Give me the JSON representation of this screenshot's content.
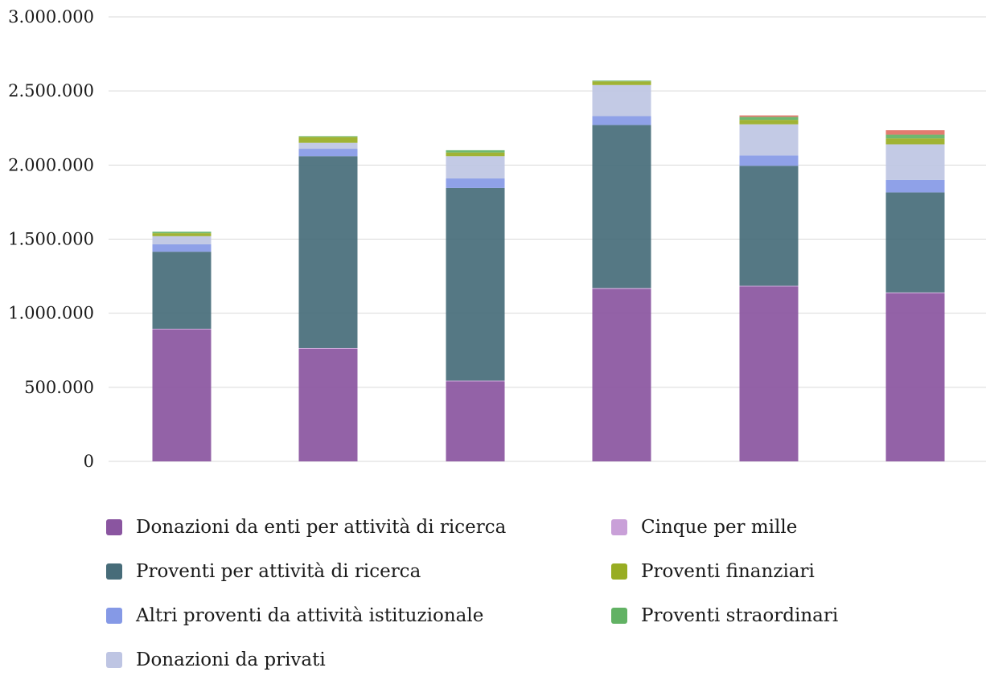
{
  "chart_data": {
    "type": "bar",
    "stacked": true,
    "categories": [
      "",
      "",
      "",
      "",
      "",
      ""
    ],
    "ylim": [
      0,
      3000000
    ],
    "y_ticks": [
      0,
      500000,
      1000000,
      1500000,
      2000000,
      2500000,
      3000000
    ],
    "y_tick_labels": [
      "0",
      "500.000",
      "1.000.000",
      "1.500.000",
      "2.000.000",
      "2.500.000",
      "3.000.000"
    ],
    "grid": true,
    "legend_position": "bottom",
    "series": [
      {
        "name": "Donazioni da enti per attività di ricerca",
        "color": "#8a55a0",
        "values": [
          890000,
          760000,
          540000,
          1165000,
          1180000,
          1135000
        ]
      },
      {
        "name": "Cinque per mille",
        "color": "#c9a0d8",
        "values": [
          5000,
          5000,
          5000,
          5000,
          5000,
          5000
        ]
      },
      {
        "name": "Proventi per attività di ricerca",
        "color": "#476c79",
        "values": [
          520000,
          1295000,
          1300000,
          1100000,
          810000,
          675000
        ]
      },
      {
        "name": "Altri proventi da attività istituzionale",
        "color": "#8599e6",
        "values": [
          50000,
          50000,
          65000,
          60000,
          70000,
          85000
        ]
      },
      {
        "name": "Donazioni da privati",
        "color": "#bec5e3",
        "values": [
          55000,
          40000,
          150000,
          210000,
          210000,
          240000
        ]
      },
      {
        "name": "Proventi finanziari",
        "color": "#98ad23",
        "values": [
          20000,
          40000,
          25000,
          25000,
          30000,
          40000
        ]
      },
      {
        "name": "Proventi straordinari",
        "color": "#62b264",
        "values": [
          10000,
          5000,
          15000,
          5000,
          20000,
          25000
        ]
      },
      {
        "name": "",
        "color": "#e07063",
        "values": [
          0,
          0,
          0,
          0,
          10000,
          30000
        ]
      }
    ],
    "legend": [
      {
        "label": "Donazioni da enti per attività di ricerca",
        "color": "#8a55a0"
      },
      {
        "label": "Cinque per mille",
        "color": "#c9a0d8"
      },
      {
        "label": "Proventi per attività di ricerca",
        "color": "#476c79"
      },
      {
        "label": "Proventi finanziari",
        "color": "#98ad23"
      },
      {
        "label": "Altri proventi da attività istituzionale",
        "color": "#8599e6"
      },
      {
        "label": "Proventi straordinari",
        "color": "#62b264"
      },
      {
        "label": "Donazioni da privati",
        "color": "#bec5e3"
      }
    ]
  }
}
